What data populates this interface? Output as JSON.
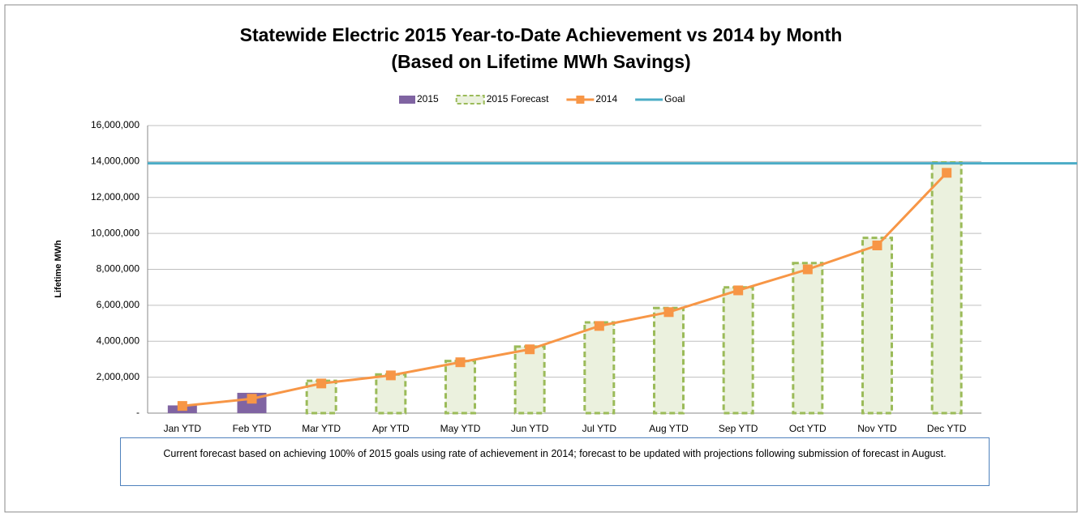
{
  "chart_data": {
    "type": "bar",
    "title": [
      "Statewide Electric 2015 Year-to-Date Achievement vs 2014 by Month",
      "(Based on Lifetime MWh Savings)"
    ],
    "y_label": "Lifetime MWh",
    "categories": [
      "Jan YTD",
      "Feb YTD",
      "Mar YTD",
      "Apr YTD",
      "May YTD",
      "Jun YTD",
      "Jul YTD",
      "Aug YTD",
      "Sep YTD",
      "Oct YTD",
      "Nov YTD",
      "Dec YTD"
    ],
    "series": [
      {
        "name": "2015",
        "kind": "bar",
        "color": "#8064a2",
        "values": [
          430000,
          1130000,
          null,
          null,
          null,
          null,
          null,
          null,
          null,
          null,
          null,
          null
        ]
      },
      {
        "name": "2015 Forecast",
        "kind": "dashed-bar",
        "color": "#9bbb59",
        "fill": "#ebf1de",
        "values": [
          null,
          null,
          1800000,
          2150000,
          2900000,
          3700000,
          5050000,
          5850000,
          7000000,
          8350000,
          9750000,
          13950000
        ]
      },
      {
        "name": "2014",
        "kind": "line",
        "color": "#f79646",
        "values": [
          400000,
          800000,
          1650000,
          2100000,
          2830000,
          3550000,
          4850000,
          5620000,
          6830000,
          8000000,
          9330000,
          13370000
        ]
      },
      {
        "name": "Goal",
        "kind": "hline",
        "color": "#4bacc6",
        "value": 13900000
      }
    ],
    "ylim": [
      0,
      16000000
    ],
    "yticks": [
      {
        "value": 0,
        "label": "-"
      },
      {
        "value": 2000000,
        "label": "2,000,000"
      },
      {
        "value": 4000000,
        "label": "4,000,000"
      },
      {
        "value": 6000000,
        "label": "6,000,000"
      },
      {
        "value": 8000000,
        "label": "8,000,000"
      },
      {
        "value": 10000000,
        "label": "10,000,000"
      },
      {
        "value": 12000000,
        "label": "12,000,000"
      },
      {
        "value": 14000000,
        "label": "14,000,000"
      },
      {
        "value": 16000000,
        "label": "16,000,000"
      }
    ],
    "grid": true,
    "legend": "top",
    "note": "Current forecast based on achieving 100% of 2015 goals using rate of achievement in 2014; forecast to be updated with projections following submission of forecast in August."
  }
}
